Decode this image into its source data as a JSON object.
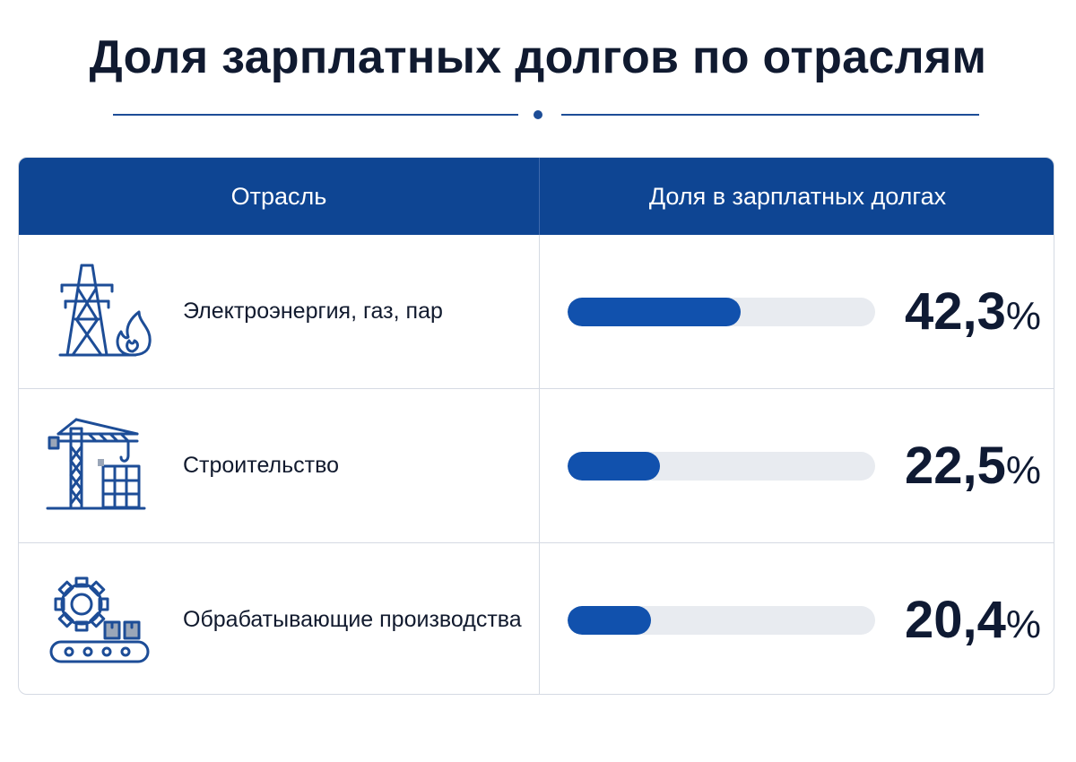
{
  "title": "Доля зарплатных долгов по отраслям",
  "colors": {
    "header_bg": "#0e4593",
    "bar_fill": "#1151ad",
    "bar_track": "#e8ebf0",
    "icon_stroke": "#1d4d97",
    "divider": "#1d4d97"
  },
  "chart_data": {
    "type": "table",
    "columns": [
      "Отрасль",
      "Доля в зарплатных долгах"
    ],
    "rows": [
      {
        "industry": "Электроэнергия, газ, пар",
        "share": 42.3,
        "share_label": "42,3",
        "unit": "%",
        "icon": "power-tower-flame-icon"
      },
      {
        "industry": "Строительство",
        "share": 22.5,
        "share_label": "22,5",
        "unit": "%",
        "icon": "construction-crane-icon"
      },
      {
        "industry": "Обрабатывающие производства",
        "share": 20.4,
        "share_label": "20,4",
        "unit": "%",
        "icon": "gear-conveyor-icon"
      }
    ],
    "bar_scale_max": 75
  }
}
